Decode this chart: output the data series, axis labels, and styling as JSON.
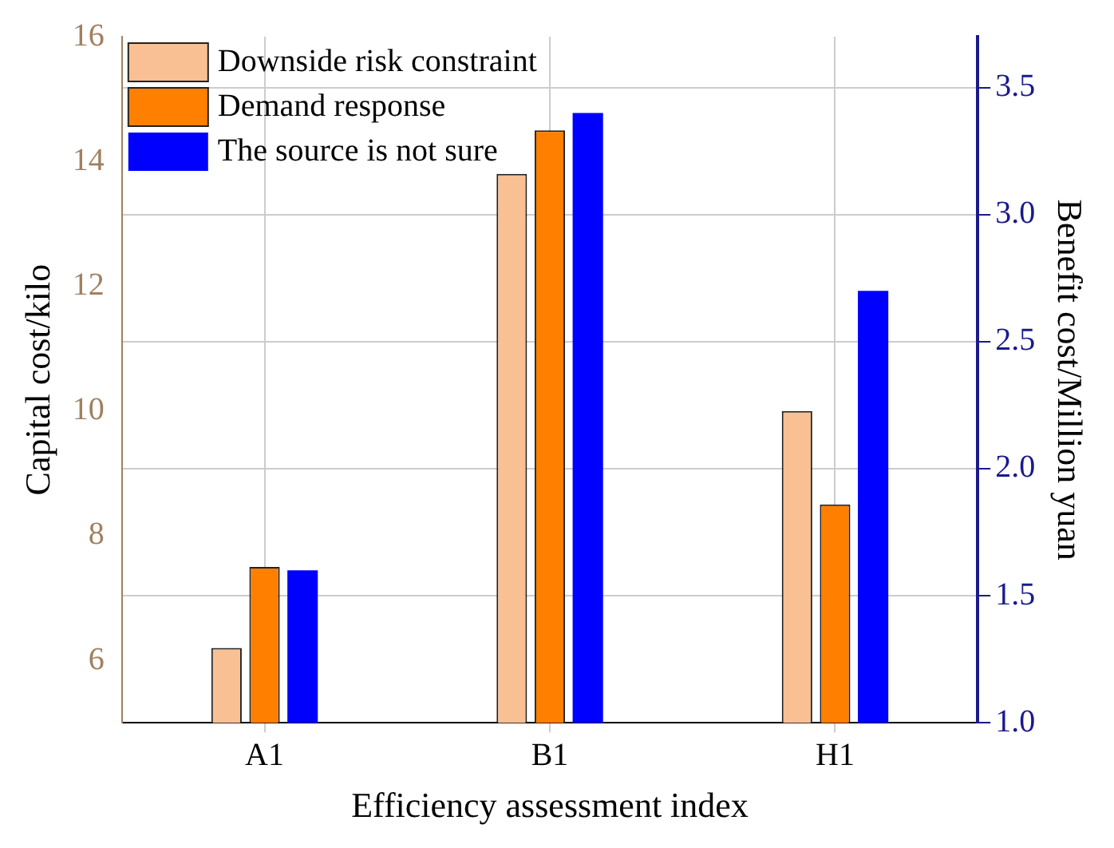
{
  "chart_data": {
    "type": "bar",
    "xlabel": "Efficiency assessment index",
    "ylabel": "Capital cost/kilo",
    "y2label": "Benefit cost/Million yuan",
    "categories": [
      "A1",
      "B1",
      "H1"
    ],
    "series": [
      {
        "name": "Downside risk constraint",
        "color": "#f8c093",
        "values": [
          6.2,
          13.8,
          10.0
        ]
      },
      {
        "name": "Demand response",
        "color": "#ff7f00",
        "values": [
          7.5,
          14.5,
          8.5
        ]
      },
      {
        "name": "The source is not sure",
        "color": "#0000ff",
        "values": [
          1.6,
          3.4,
          2.7
        ],
        "axis": "y2"
      }
    ],
    "ylim": [
      5,
      16
    ],
    "yticks": [
      6,
      8,
      10,
      12,
      14,
      16
    ],
    "y2lim": [
      1,
      3.7
    ],
    "y2ticks": [
      {
        "value": 1,
        "label": "1.0"
      },
      1.5,
      {
        "value": 2,
        "label": "2.0"
      },
      2.5,
      {
        "value": 3,
        "label": "3.0"
      },
      3.5
    ],
    "grid": true,
    "legend": "top left"
  }
}
